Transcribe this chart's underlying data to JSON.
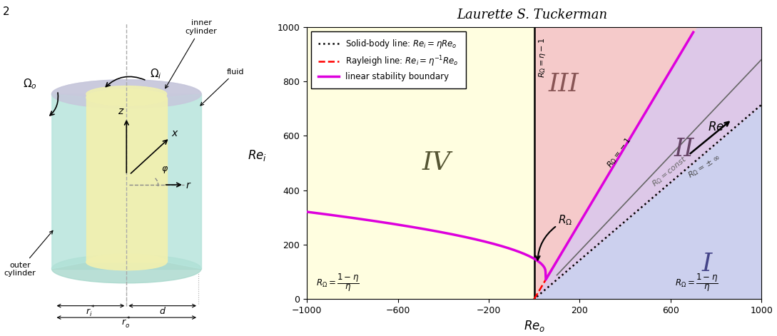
{
  "title": "Laurette S. Tuckerman",
  "fig_number": "2",
  "eta": 0.714,
  "Re_min": -1000,
  "Re_max": 1000,
  "Rei_min": 0,
  "Rei_max": 1000,
  "bg_color_IV": "#fffee0",
  "bg_color_III": "#f5caca",
  "bg_color_II": "#ddc8e8",
  "bg_color_I": "#ccd0ee",
  "xlabel": "$Re_o$",
  "ylabel": "$Re_i$"
}
